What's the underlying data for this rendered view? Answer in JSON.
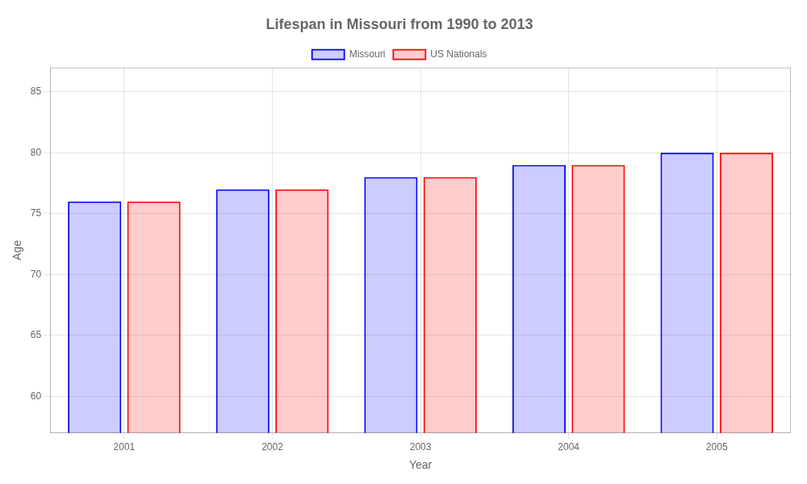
{
  "chart_data": {
    "type": "bar",
    "title": "Lifespan in Missouri from 1990 to 2013",
    "x_label": "Year",
    "y_label": "Age",
    "categories": [
      "2001",
      "2002",
      "2003",
      "2004",
      "2005"
    ],
    "series": [
      {
        "name": "Missouri",
        "color": "#0000ff",
        "values": [
          76,
          77,
          78,
          79,
          80
        ]
      },
      {
        "name": "US Nationals",
        "color": "#ff0000",
        "values": [
          76,
          77,
          78,
          79,
          80
        ]
      }
    ],
    "ylim": [
      57,
      87
    ],
    "yticks": [
      60,
      65,
      70,
      75,
      80,
      85
    ],
    "grid": true,
    "legend": "top"
  }
}
